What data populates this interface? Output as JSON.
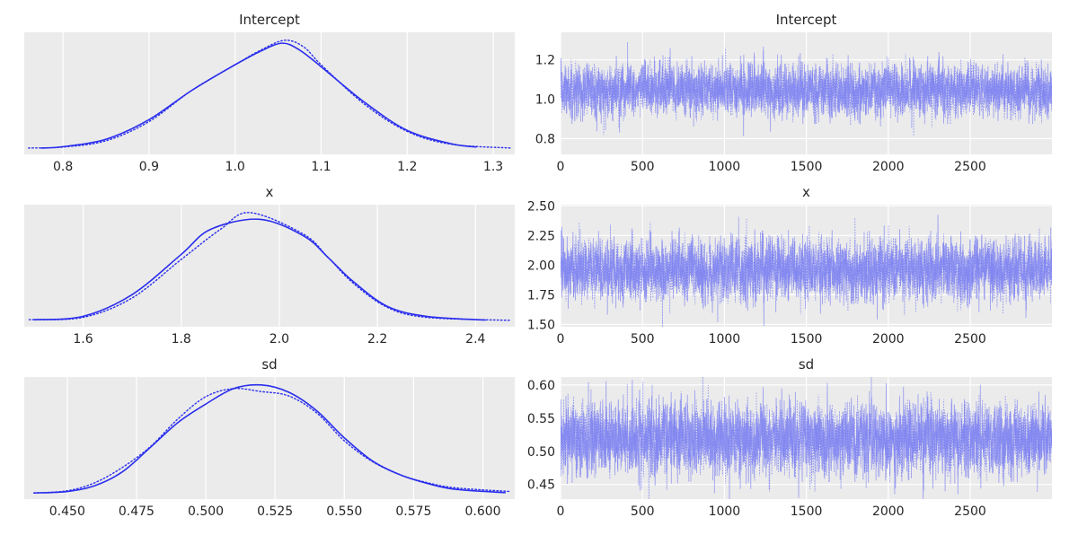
{
  "figure": {
    "colors": {
      "line": "#2a2eec",
      "trace": "#7b7ff0",
      "panel": "#ebebeb",
      "grid": "#ffffff"
    }
  },
  "chart_data": [
    {
      "type": "line",
      "title": "Intercept",
      "xlabel": "",
      "ylabel": "",
      "xlim": [
        0.755,
        1.325
      ],
      "xticks": [
        "0.8",
        "0.9",
        "1.0",
        "1.1",
        "1.2",
        "1.3"
      ],
      "yticks": [],
      "grid": true,
      "series": [
        {
          "style": "solid",
          "x": [
            0.775,
            0.8,
            0.85,
            0.9,
            0.95,
            1.0,
            1.03,
            1.055,
            1.075,
            1.1,
            1.15,
            1.2,
            1.25,
            1.28
          ],
          "y": [
            0.05,
            0.12,
            0.5,
            1.5,
            3.0,
            4.3,
            5.0,
            5.4,
            5.05,
            4.2,
            2.4,
            0.95,
            0.28,
            0.1
          ]
        },
        {
          "style": "dotted",
          "x": [
            0.76,
            0.8,
            0.85,
            0.9,
            0.95,
            1.0,
            1.03,
            1.058,
            1.08,
            1.1,
            1.15,
            1.2,
            1.25,
            1.32
          ],
          "y": [
            0.05,
            0.1,
            0.42,
            1.4,
            3.0,
            4.3,
            5.05,
            5.55,
            5.2,
            4.3,
            2.3,
            0.9,
            0.25,
            0.05
          ]
        }
      ]
    },
    {
      "type": "line",
      "title": "Intercept",
      "xlabel": "",
      "ylabel": "",
      "xlim": [
        0,
        2999
      ],
      "ylim": [
        0.72,
        1.34
      ],
      "xticks": [
        "0",
        "500",
        "1000",
        "1500",
        "2000",
        "2500"
      ],
      "yticks": [
        "0.8",
        "1.0",
        "1.2"
      ],
      "grid": true,
      "trace": {
        "n": 3000,
        "mean": 1.045,
        "sd": 0.065
      }
    },
    {
      "type": "line",
      "title": "x",
      "xlabel": "",
      "ylabel": "",
      "xlim": [
        1.48,
        2.48
      ],
      "xticks": [
        "1.6",
        "1.8",
        "2.0",
        "2.2",
        "2.4"
      ],
      "yticks": [],
      "grid": true,
      "series": [
        {
          "style": "solid",
          "x": [
            1.5,
            1.6,
            1.7,
            1.8,
            1.86,
            1.96,
            2.05,
            2.1,
            2.15,
            2.22,
            2.3,
            2.42
          ],
          "y": [
            0.05,
            0.15,
            0.8,
            2.0,
            2.75,
            3.05,
            2.55,
            1.9,
            1.2,
            0.45,
            0.15,
            0.04
          ]
        },
        {
          "style": "dotted",
          "x": [
            1.49,
            1.6,
            1.7,
            1.8,
            1.88,
            1.94,
            2.05,
            2.1,
            2.15,
            2.22,
            2.3,
            2.47
          ],
          "y": [
            0.05,
            0.12,
            0.7,
            1.85,
            2.75,
            3.25,
            2.6,
            1.9,
            1.15,
            0.42,
            0.12,
            0.03
          ]
        }
      ]
    },
    {
      "type": "line",
      "title": "x",
      "xlabel": "",
      "ylabel": "",
      "xlim": [
        0,
        2999
      ],
      "ylim": [
        1.48,
        2.51
      ],
      "xticks": [
        "0",
        "500",
        "1000",
        "1500",
        "2000",
        "2500"
      ],
      "yticks": [
        "1.50",
        "1.75",
        "2.00",
        "2.25",
        "2.50"
      ],
      "grid": true,
      "trace": {
        "n": 3000,
        "mean": 1.96,
        "sd": 0.13
      }
    },
    {
      "type": "line",
      "title": "sd",
      "xlabel": "",
      "ylabel": "",
      "xlim": [
        0.4345,
        0.6115
      ],
      "xticks": [
        "0.450",
        "0.475",
        "0.500",
        "0.525",
        "0.550",
        "0.575",
        "0.600"
      ],
      "yticks": [],
      "grid": true,
      "series": [
        {
          "style": "solid",
          "x": [
            0.438,
            0.45,
            0.46,
            0.47,
            0.48,
            0.49,
            0.5,
            0.51,
            0.52,
            0.53,
            0.54,
            0.55,
            0.56,
            0.57,
            0.58,
            0.59,
            0.608
          ],
          "y": [
            0.1,
            0.3,
            1.1,
            3.0,
            6.3,
            9.7,
            12.2,
            14.3,
            14.8,
            13.8,
            11.3,
            7.6,
            4.5,
            2.6,
            1.4,
            0.6,
            0.15
          ]
        },
        {
          "style": "dotted",
          "x": [
            0.438,
            0.45,
            0.46,
            0.47,
            0.48,
            0.49,
            0.5,
            0.51,
            0.52,
            0.53,
            0.54,
            0.55,
            0.56,
            0.57,
            0.58,
            0.59,
            0.61
          ],
          "y": [
            0.1,
            0.4,
            1.5,
            3.6,
            6.4,
            10.2,
            13.2,
            14.3,
            13.9,
            13.3,
            11.0,
            7.2,
            4.4,
            2.6,
            1.5,
            0.8,
            0.3
          ]
        }
      ]
    },
    {
      "type": "line",
      "title": "sd",
      "xlabel": "",
      "ylabel": "",
      "xlim": [
        0,
        2999
      ],
      "ylim": [
        0.428,
        0.612
      ],
      "xticks": [
        "0",
        "500",
        "1000",
        "1500",
        "2000",
        "2500"
      ],
      "yticks": [
        "0.45",
        "0.50",
        "0.55",
        "0.60"
      ],
      "grid": true,
      "trace": {
        "n": 3000,
        "mean": 0.518,
        "sd": 0.027
      }
    }
  ]
}
